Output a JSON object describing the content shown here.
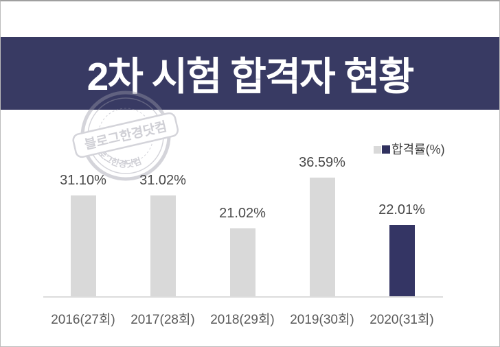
{
  "header": {
    "title": "2차 시험 합격자 현황"
  },
  "watermark": {
    "banner_text": "블로그한경닷컴",
    "arc_text": "블로그한경닷컴"
  },
  "legend": {
    "label": "합격률(%)"
  },
  "chart_data": {
    "type": "bar",
    "title": "2차 시험 합격자 현황",
    "series_name": "합격률(%)",
    "categories": [
      "2016(27회)",
      "2017(28회)",
      "2018(29회)",
      "2019(30회)",
      "2020(31회)"
    ],
    "values": [
      31.1,
      31.02,
      21.02,
      36.59,
      22.01
    ],
    "value_labels": [
      "31.10%",
      "31.02%",
      "21.02%",
      "36.59%",
      "22.01%"
    ],
    "highlight_index": 4,
    "bar_colors": [
      "#d9d9d9",
      "#d9d9d9",
      "#d9d9d9",
      "#d9d9d9",
      "#343564"
    ],
    "ylim": [
      0,
      40
    ],
    "grid": false,
    "legend_position": "top-right",
    "data_labels": true
  },
  "colors": {
    "header_bg": "#383a63",
    "bar_gray": "#d9d9d9",
    "bar_navy": "#343564",
    "legend_navy": "#30315e",
    "axis_line": "#dcdcdc",
    "value_label_text": "#484848",
    "axis_label_text": "#595959",
    "title_text": "#ffffff"
  }
}
